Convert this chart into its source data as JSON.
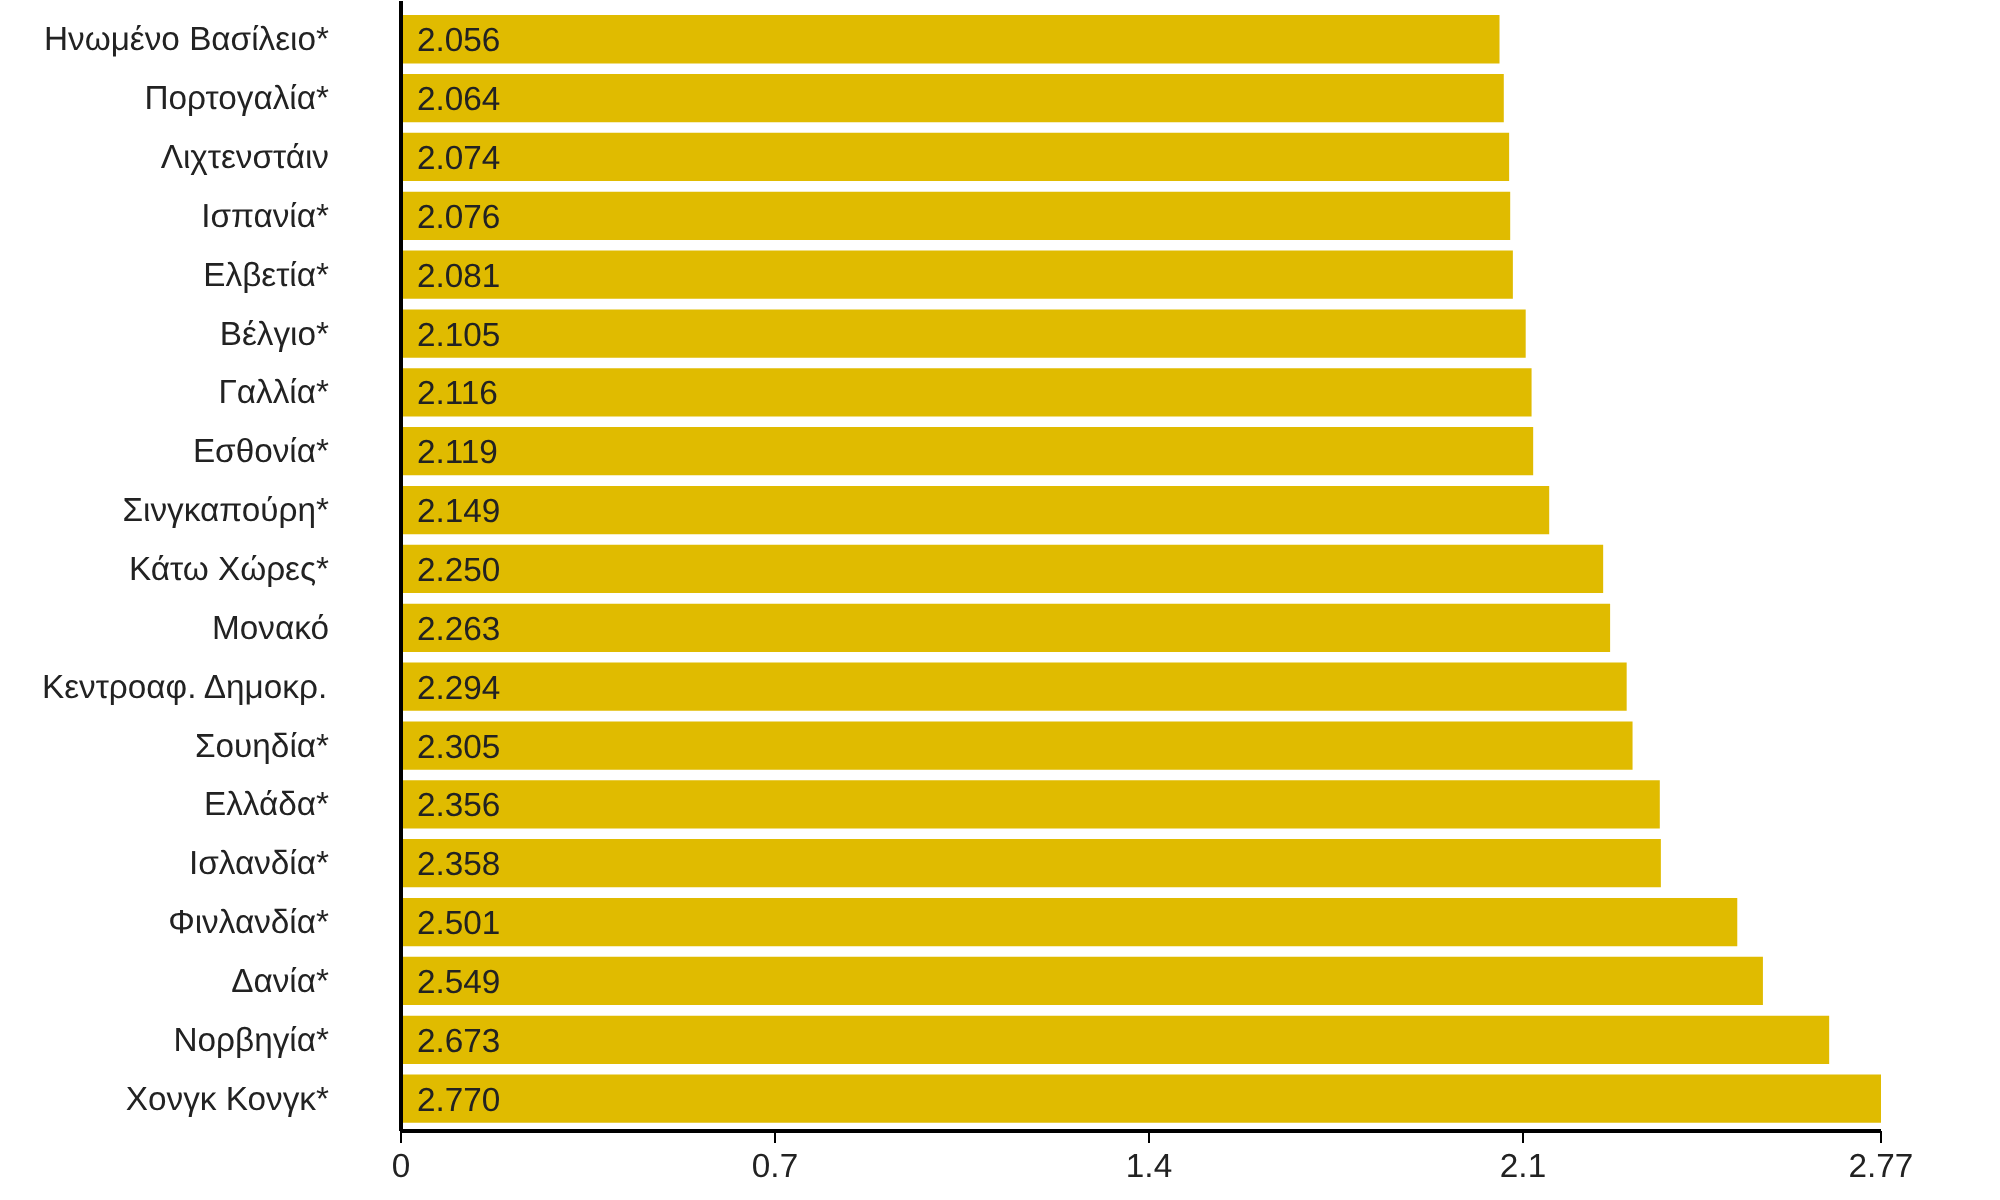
{
  "chart_data": {
    "type": "bar",
    "orientation": "horizontal",
    "categories": [
      "Ηνωμένο Βασίλειο*",
      "Πορτογαλία*",
      "Λιχτενστάιν",
      "Ισπανία*",
      "Ελβετία*",
      "Βέλγιο*",
      "Γαλλία*",
      "Εσθονία*",
      "Σινγκαπούρη*",
      "Κάτω Χώρες*",
      "Μονακό",
      "Κεντροαφ. Δημοκρ.",
      "Σουηδία*",
      "Ελλάδα*",
      "Ισλανδία*",
      "Φινλανδία*",
      "Δανία*",
      "Νορβηγία*",
      "Χονγκ Κονγκ*"
    ],
    "values": [
      2.056,
      2.064,
      2.074,
      2.076,
      2.081,
      2.105,
      2.116,
      2.119,
      2.149,
      2.25,
      2.263,
      2.294,
      2.305,
      2.356,
      2.358,
      2.501,
      2.549,
      2.673,
      2.77
    ],
    "value_labels": [
      "2.056",
      "2.064",
      "2.074",
      "2.076",
      "2.081",
      "2.105",
      "2.116",
      "2.119",
      "2.149",
      "2.250",
      "2.263",
      "2.294",
      "2.305",
      "2.356",
      "2.358",
      "2.501",
      "2.549",
      "2.673",
      "2.770"
    ],
    "color": "#e0bb00",
    "xlim": [
      0,
      2.77
    ],
    "xticks": [
      0,
      0.7,
      1.4,
      2.1,
      2.77
    ],
    "grid": false
  }
}
